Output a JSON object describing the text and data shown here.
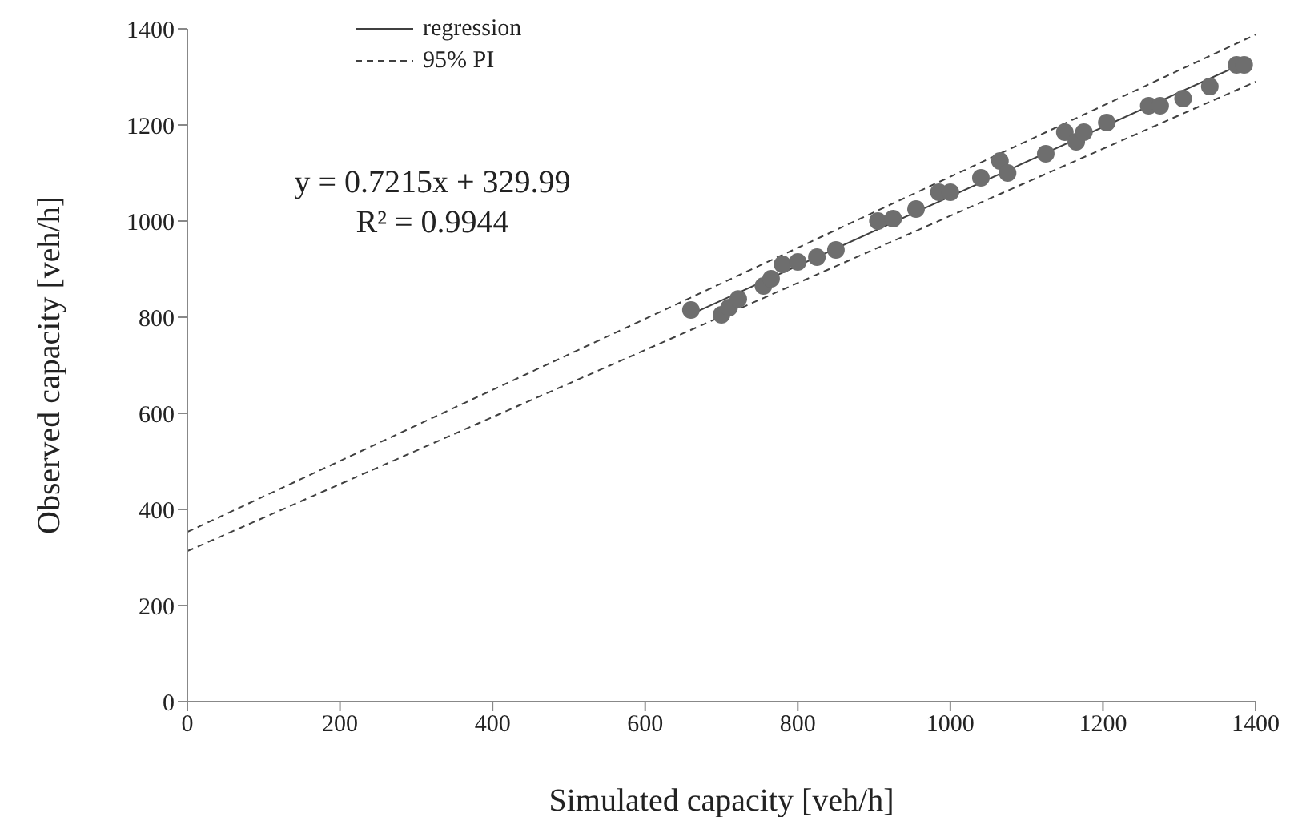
{
  "chart_data": {
    "type": "scatter",
    "xlabel": "Simulated capacity [veh/h]",
    "ylabel": "Observed capacity [veh/h]",
    "xlim": [
      0,
      1400
    ],
    "xticks": [
      0,
      200,
      400,
      600,
      800,
      1000,
      1200,
      1400
    ],
    "ylim": [
      0,
      1400
    ],
    "yticks": [
      0,
      200,
      400,
      600,
      800,
      1000,
      1200,
      1400
    ],
    "grid": false,
    "legend": "top left",
    "marker": "circle",
    "annotations": [
      "y = 0.7215x + 329.99",
      "R² = 0.9944"
    ],
    "series": [
      {
        "color": "#6e6e6e",
        "x": [
          660,
          700,
          710,
          722,
          755,
          765,
          780,
          800,
          825,
          850,
          905,
          925,
          955,
          985,
          1000,
          1040,
          1065,
          1075,
          1125,
          1150,
          1165,
          1175,
          1205,
          1260,
          1275,
          1305,
          1340,
          1375,
          1385
        ],
        "values": [
          815,
          805,
          820,
          838,
          865,
          880,
          910,
          915,
          925,
          940,
          1000,
          1005,
          1025,
          1060,
          1060,
          1090,
          1125,
          1100,
          1140,
          1185,
          1165,
          1185,
          1205,
          1240,
          1240,
          1255,
          1280,
          1325,
          1325
        ]
      },
      {
        "type": "line",
        "name": "regression",
        "color": "#404040",
        "line_style": "solid",
        "marker": "none",
        "x": [
          660,
          1385
        ],
        "values": [
          806,
          1329
        ]
      },
      {
        "type": "line",
        "name": "95% PI",
        "color": "#404040",
        "line_style": "dashed",
        "marker": "none",
        "x": [
          0,
          1400
        ],
        "values": [
          353,
          1388
        ]
      },
      {
        "type": "line",
        "color": "#404040",
        "line_style": "dashed",
        "marker": "none",
        "x": [
          0,
          1400
        ],
        "values": [
          313,
          1290
        ]
      }
    ]
  }
}
